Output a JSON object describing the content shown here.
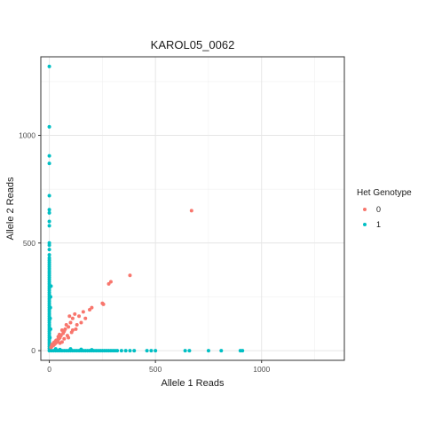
{
  "chart_data": {
    "type": "scatter",
    "title": "KAROL05_0062",
    "xlabel": "Allele 1 Reads",
    "ylabel": "Allele 2 Reads",
    "xlim": [
      -40,
      1390
    ],
    "ylim": [
      -45,
      1365
    ],
    "x_ticks": [
      0,
      500,
      1000
    ],
    "y_ticks": [
      0,
      500,
      1000
    ],
    "x_tick_labels": [
      "0",
      "500",
      "1000"
    ],
    "y_tick_labels": [
      "0",
      "500",
      "1000"
    ],
    "grid": true,
    "legend": {
      "title": "Het Genotype",
      "position": "right"
    },
    "series": [
      {
        "name": "0",
        "color": "#F8766D",
        "points": [
          [
            670,
            650
          ],
          [
            380,
            350
          ],
          [
            290,
            320
          ],
          [
            280,
            310
          ],
          [
            250,
            220
          ],
          [
            255,
            215
          ],
          [
            200,
            200
          ],
          [
            190,
            190
          ],
          [
            160,
            180
          ],
          [
            140,
            160
          ],
          [
            120,
            170
          ],
          [
            110,
            150
          ],
          [
            100,
            130
          ],
          [
            95,
            160
          ],
          [
            90,
            110
          ],
          [
            80,
            120
          ],
          [
            75,
            100
          ],
          [
            70,
            90
          ],
          [
            65,
            80
          ],
          [
            60,
            95
          ],
          [
            55,
            70
          ],
          [
            50,
            60
          ],
          [
            48,
            75
          ],
          [
            45,
            55
          ],
          [
            42,
            65
          ],
          [
            40,
            45
          ],
          [
            38,
            50
          ],
          [
            35,
            40
          ],
          [
            32,
            48
          ],
          [
            30,
            35
          ],
          [
            28,
            42
          ],
          [
            25,
            30
          ],
          [
            22,
            38
          ],
          [
            20,
            25
          ],
          [
            18,
            32
          ],
          [
            15,
            22
          ],
          [
            12,
            28
          ],
          [
            10,
            18
          ],
          [
            8,
            15
          ],
          [
            60,
            40
          ],
          [
            70,
            55
          ],
          [
            85,
            70
          ],
          [
            105,
            85
          ],
          [
            125,
            100
          ],
          [
            130,
            120
          ],
          [
            150,
            130
          ],
          [
            170,
            150
          ],
          [
            90,
            60
          ],
          [
            110,
            95
          ],
          [
            50,
            35
          ]
        ]
      },
      {
        "name": "1",
        "color": "#00BFC4",
        "points": [
          [
            0,
            1320
          ],
          [
            0,
            1040
          ],
          [
            0,
            905
          ],
          [
            0,
            870
          ],
          [
            0,
            720
          ],
          [
            0,
            655
          ],
          [
            0,
            640
          ],
          [
            0,
            600
          ],
          [
            0,
            580
          ],
          [
            0,
            500
          ],
          [
            0,
            490
          ],
          [
            0,
            470
          ],
          [
            0,
            445
          ],
          [
            0,
            430
          ],
          [
            0,
            420
          ],
          [
            0,
            410
          ],
          [
            0,
            400
          ],
          [
            0,
            390
          ],
          [
            0,
            380
          ],
          [
            0,
            370
          ],
          [
            0,
            360
          ],
          [
            0,
            350
          ],
          [
            0,
            340
          ],
          [
            0,
            330
          ],
          [
            0,
            320
          ],
          [
            0,
            310
          ],
          [
            0,
            300
          ],
          [
            0,
            290
          ],
          [
            0,
            280
          ],
          [
            0,
            270
          ],
          [
            0,
            260
          ],
          [
            0,
            250
          ],
          [
            0,
            240
          ],
          [
            0,
            230
          ],
          [
            0,
            220
          ],
          [
            0,
            210
          ],
          [
            0,
            200
          ],
          [
            0,
            190
          ],
          [
            0,
            180
          ],
          [
            0,
            170
          ],
          [
            0,
            160
          ],
          [
            0,
            150
          ],
          [
            0,
            140
          ],
          [
            0,
            130
          ],
          [
            0,
            120
          ],
          [
            0,
            110
          ],
          [
            0,
            100
          ],
          [
            0,
            90
          ],
          [
            0,
            80
          ],
          [
            0,
            70
          ],
          [
            0,
            60
          ],
          [
            0,
            50
          ],
          [
            0,
            40
          ],
          [
            0,
            30
          ],
          [
            0,
            20
          ],
          [
            0,
            10
          ],
          [
            0,
            0
          ],
          [
            8,
            300
          ],
          [
            6,
            250
          ],
          [
            5,
            200
          ],
          [
            4,
            150
          ],
          [
            6,
            100
          ],
          [
            3,
            60
          ],
          [
            10,
            0
          ],
          [
            20,
            0
          ],
          [
            30,
            0
          ],
          [
            40,
            0
          ],
          [
            50,
            0
          ],
          [
            60,
            0
          ],
          [
            70,
            0
          ],
          [
            80,
            0
          ],
          [
            90,
            0
          ],
          [
            100,
            0
          ],
          [
            110,
            0
          ],
          [
            120,
            0
          ],
          [
            130,
            0
          ],
          [
            140,
            0
          ],
          [
            150,
            0
          ],
          [
            160,
            0
          ],
          [
            170,
            0
          ],
          [
            180,
            0
          ],
          [
            190,
            0
          ],
          [
            200,
            0
          ],
          [
            210,
            0
          ],
          [
            220,
            0
          ],
          [
            230,
            0
          ],
          [
            240,
            0
          ],
          [
            250,
            0
          ],
          [
            260,
            0
          ],
          [
            270,
            0
          ],
          [
            280,
            0
          ],
          [
            290,
            0
          ],
          [
            300,
            0
          ],
          [
            310,
            0
          ],
          [
            320,
            0
          ],
          [
            340,
            0
          ],
          [
            360,
            0
          ],
          [
            380,
            0
          ],
          [
            400,
            0
          ],
          [
            460,
            0
          ],
          [
            480,
            0
          ],
          [
            500,
            0
          ],
          [
            640,
            0
          ],
          [
            660,
            0
          ],
          [
            750,
            0
          ],
          [
            810,
            0
          ],
          [
            900,
            0
          ],
          [
            910,
            0
          ],
          [
            50,
            5
          ],
          [
            100,
            8
          ],
          [
            150,
            6
          ],
          [
            200,
            4
          ],
          [
            30,
            8
          ]
        ]
      }
    ]
  }
}
